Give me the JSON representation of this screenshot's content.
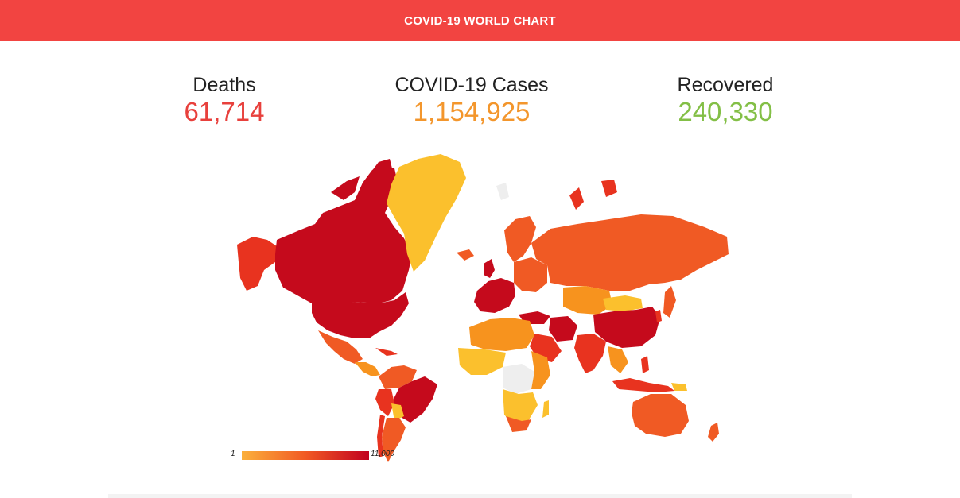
{
  "header": {
    "title": "COVID-19 WORLD CHART"
  },
  "stats": {
    "deaths": {
      "label": "Deaths",
      "value": "61,714",
      "color": "#e8403c"
    },
    "cases": {
      "label": "COVID-19 Cases",
      "value": "1,154,925",
      "color": "#f3962c"
    },
    "recovered": {
      "label": "Recovered",
      "value": "240,330",
      "color": "#83bf46"
    }
  },
  "legend": {
    "min_label": "1",
    "max_label": "11,000",
    "color_low": "#fbb03b",
    "color_mid": "#f15a24",
    "color_high": "#c1001f"
  },
  "map": {
    "colors": {
      "very_high": "#c50a1c",
      "high": "#e8331f",
      "medium_high": "#f05a24",
      "medium": "#f7931e",
      "low": "#fbc02d",
      "no_data": "#eeeeee"
    }
  }
}
